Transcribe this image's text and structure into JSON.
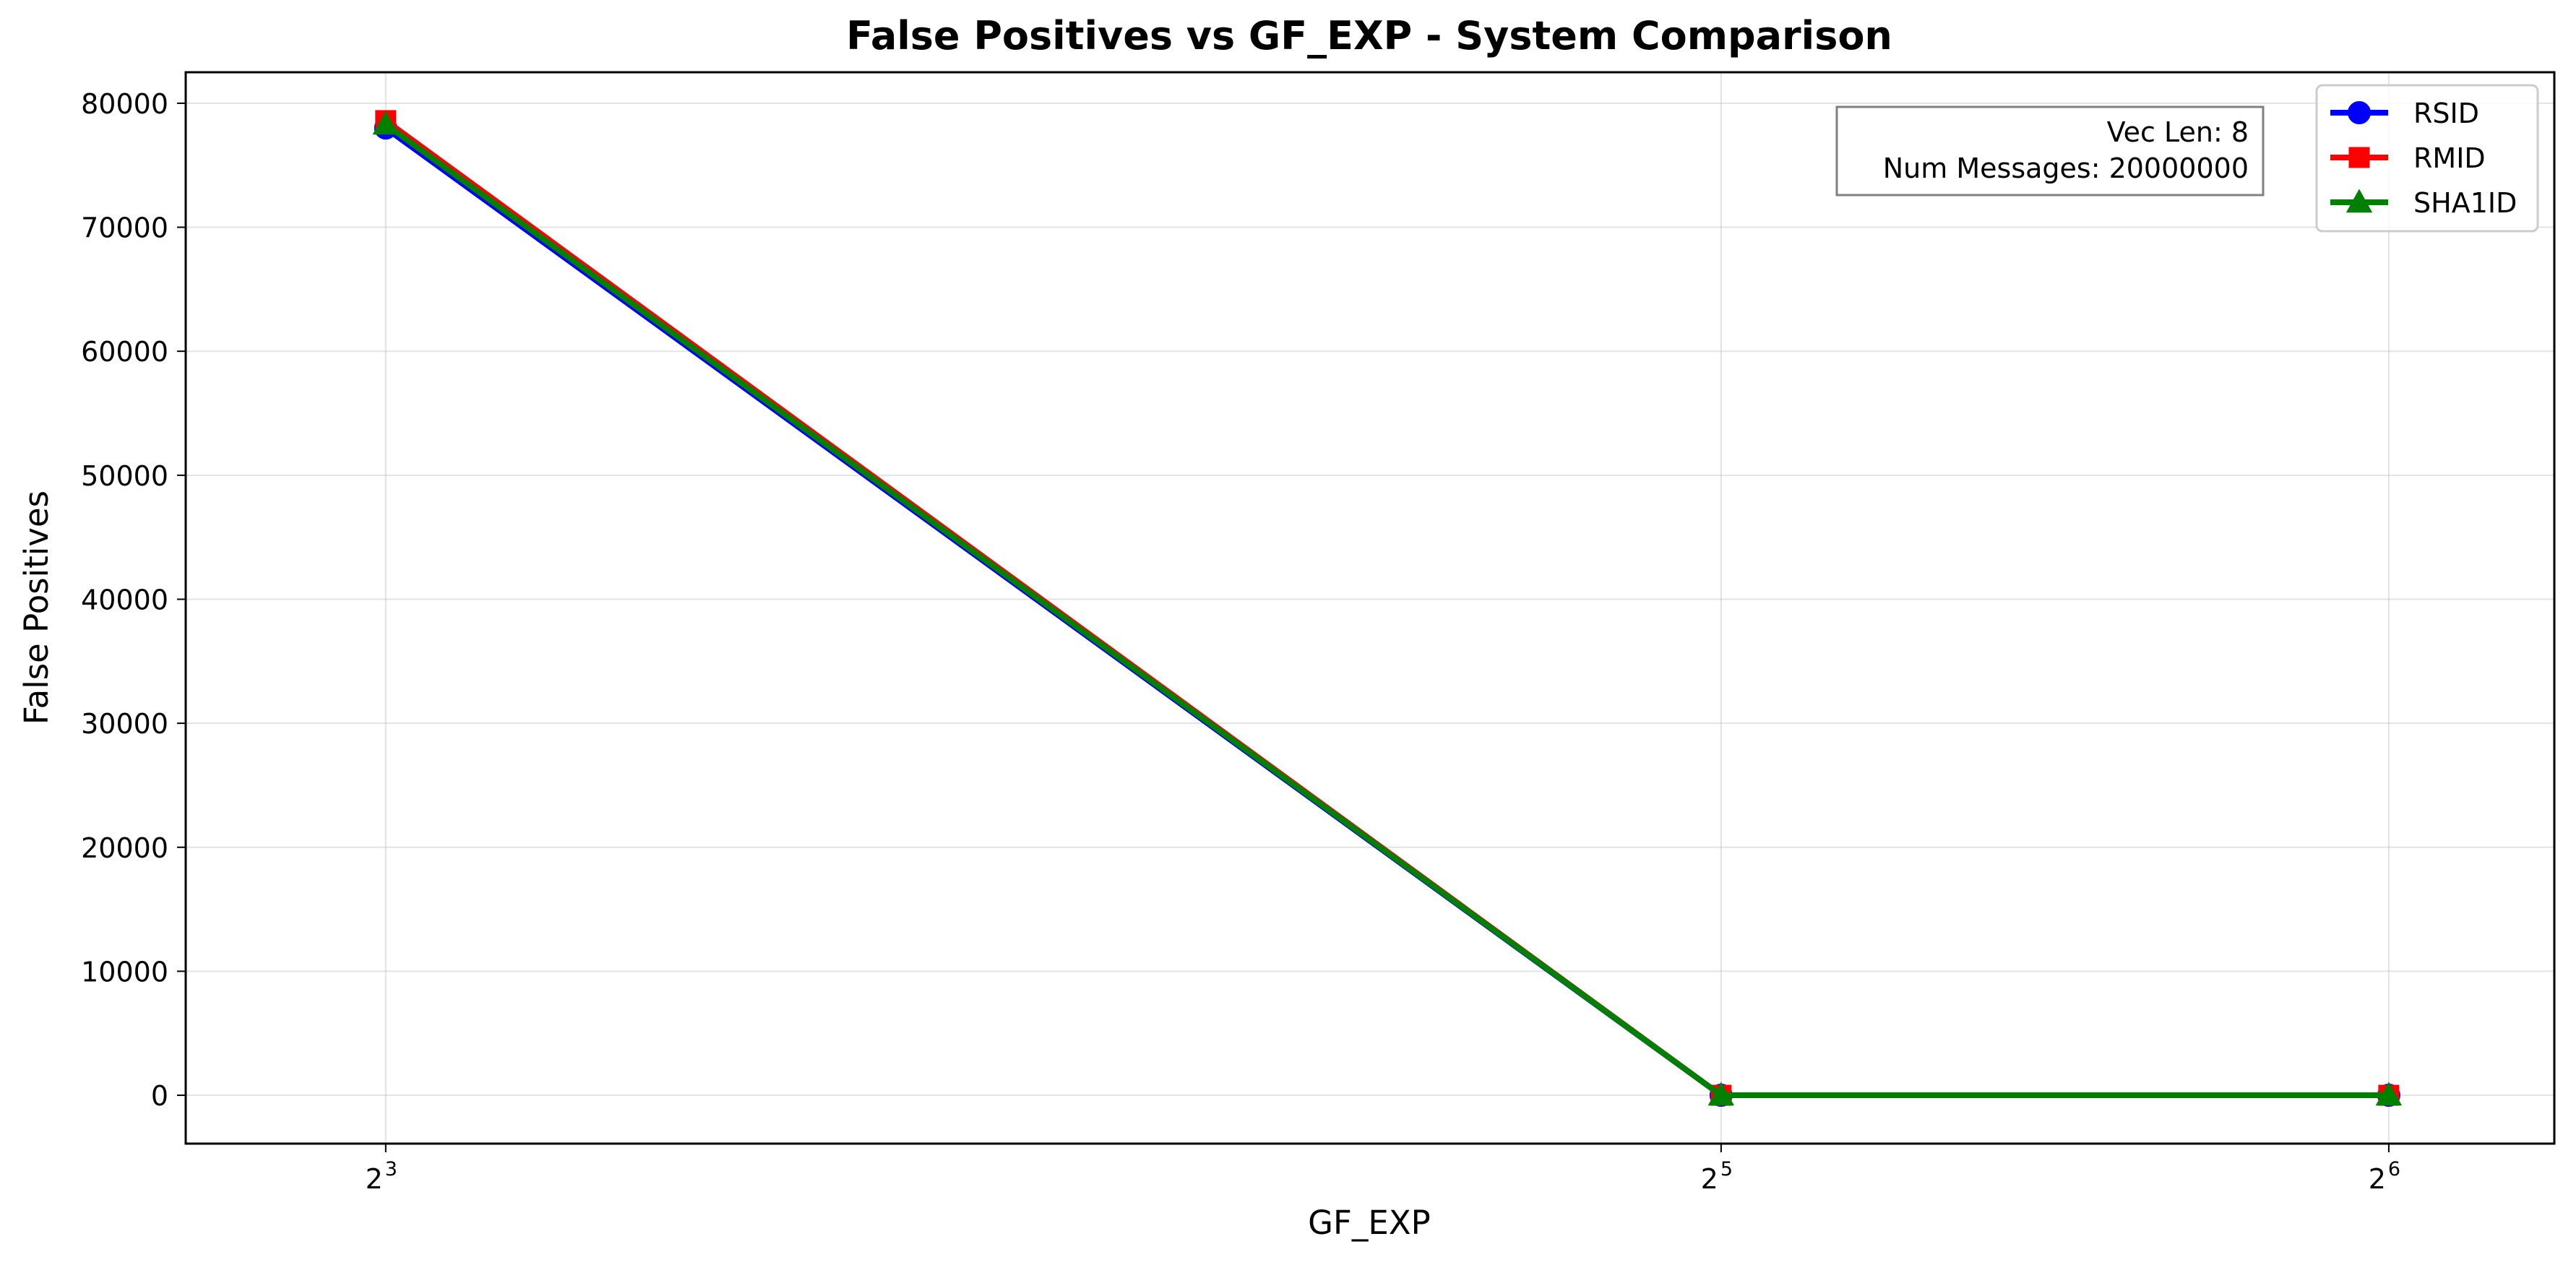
{
  "chart_data": {
    "type": "line",
    "title": "False Positives vs GF_EXP - System Comparison",
    "xlabel": "GF_EXP",
    "ylabel": "False Positives",
    "x_scale": "log2",
    "x": [
      8,
      32,
      64
    ],
    "x_tick_labels": [
      {
        "base": "2",
        "exp": "3"
      },
      {
        "base": "2",
        "exp": "5"
      },
      {
        "base": "2",
        "exp": "6"
      }
    ],
    "y_ticks": [
      0,
      10000,
      20000,
      30000,
      40000,
      50000,
      60000,
      70000,
      80000
    ],
    "xlim": [
      6.5,
      76
    ],
    "ylim": [
      -3900,
      82500
    ],
    "grid": true,
    "legend_position": "top-right",
    "series": [
      {
        "name": "RSID",
        "values": [
          78000,
          0,
          0
        ],
        "color": "#0000ff",
        "marker": "circle"
      },
      {
        "name": "RMID",
        "values": [
          78600,
          0,
          0
        ],
        "color": "#ff0000",
        "marker": "square"
      },
      {
        "name": "SHA1ID",
        "values": [
          78300,
          0,
          0
        ],
        "color": "#008000",
        "marker": "triangle"
      }
    ],
    "annotation": {
      "lines": [
        "Vec Len: 8",
        "Num Messages: 20000000"
      ]
    }
  }
}
